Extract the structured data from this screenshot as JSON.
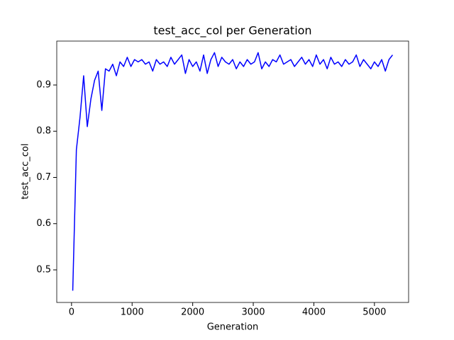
{
  "chart_data": {
    "type": "line",
    "title": "test_acc_col per Generation",
    "x_label": "Generation",
    "y_label": "test_acc_col",
    "x": [
      20,
      80,
      140,
      200,
      260,
      320,
      380,
      440,
      500,
      560,
      620,
      680,
      740,
      800,
      860,
      920,
      980,
      1040,
      1100,
      1160,
      1220,
      1280,
      1340,
      1400,
      1460,
      1520,
      1580,
      1640,
      1700,
      1760,
      1820,
      1880,
      1940,
      2000,
      2060,
      2120,
      2180,
      2240,
      2300,
      2360,
      2420,
      2480,
      2540,
      2600,
      2660,
      2720,
      2780,
      2840,
      2900,
      2960,
      3020,
      3080,
      3140,
      3200,
      3260,
      3320,
      3380,
      3440,
      3500,
      3560,
      3620,
      3680,
      3740,
      3800,
      3860,
      3920,
      3980,
      4040,
      4100,
      4160,
      4220,
      4280,
      4340,
      4400,
      4460,
      4520,
      4580,
      4640,
      4700,
      4760,
      4820,
      4880,
      4940,
      5000,
      5060,
      5120,
      5180,
      5240,
      5300
    ],
    "series": [
      {
        "color": "#0000ff",
        "values": [
          0.455,
          0.76,
          0.83,
          0.92,
          0.81,
          0.87,
          0.91,
          0.93,
          0.845,
          0.935,
          0.93,
          0.945,
          0.92,
          0.95,
          0.94,
          0.96,
          0.94,
          0.955,
          0.95,
          0.955,
          0.945,
          0.95,
          0.93,
          0.955,
          0.945,
          0.95,
          0.94,
          0.96,
          0.945,
          0.955,
          0.965,
          0.925,
          0.955,
          0.94,
          0.95,
          0.93,
          0.965,
          0.925,
          0.955,
          0.97,
          0.94,
          0.96,
          0.95,
          0.945,
          0.955,
          0.935,
          0.95,
          0.94,
          0.955,
          0.945,
          0.95,
          0.97,
          0.935,
          0.95,
          0.94,
          0.955,
          0.95,
          0.965,
          0.945,
          0.95,
          0.955,
          0.94,
          0.95,
          0.96,
          0.945,
          0.955,
          0.94,
          0.965,
          0.945,
          0.955,
          0.935,
          0.96,
          0.945,
          0.95,
          0.94,
          0.955,
          0.945,
          0.95,
          0.965,
          0.94,
          0.955,
          0.945,
          0.935,
          0.95,
          0.94,
          0.955,
          0.93,
          0.955,
          0.965
        ]
      }
    ],
    "xlim": [
      -244,
      5564
    ],
    "xticks": [
      0,
      1000,
      2000,
      3000,
      4000,
      5000
    ],
    "ylim": [
      0.4295,
      0.995
    ],
    "yticks": [
      0.5,
      0.6,
      0.7,
      0.8,
      0.9
    ],
    "grid": false
  }
}
